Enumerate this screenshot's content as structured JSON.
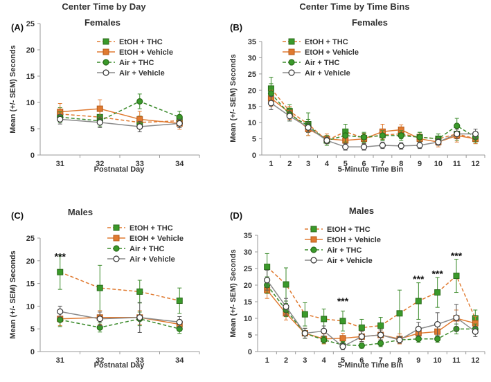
{
  "header": {
    "left_title": "Center Time by Day",
    "right_title": "Center Time by Time Bins"
  },
  "chart_data": [
    {
      "type": "line",
      "panel_label": "(A)",
      "title": "Females",
      "xlabel": "Postnatal Day",
      "ylabel": "Mean (+/- SEM) Seconds",
      "ylim": [
        0,
        25
      ],
      "yticks": [
        0,
        5,
        10,
        15,
        20,
        25
      ],
      "categories": [
        "31",
        "32",
        "33",
        "34"
      ],
      "series": [
        {
          "name": "EtOH + THC",
          "color": "#3a8a2a",
          "marker": "square",
          "fill": "#3a9a2a",
          "dash": true,
          "values": [
            7.8,
            7.2,
            6.2,
            6.5
          ],
          "err": [
            1.2,
            1.3,
            1.2,
            1.0
          ]
        },
        {
          "name": "EtOH + Vehicle",
          "color": "#e07a30",
          "marker": "square",
          "fill": "#e07a30",
          "dash": false,
          "values": [
            8.2,
            8.8,
            6.8,
            6.0
          ],
          "err": [
            1.6,
            1.7,
            1.5,
            1.1
          ]
        },
        {
          "name": "Air + THC",
          "color": "#3a8a2a",
          "marker": "circle",
          "fill": "#3a9a2a",
          "dash": true,
          "values": [
            7.2,
            6.5,
            10.2,
            7.2
          ],
          "err": [
            1.0,
            1.0,
            1.4,
            1.1
          ]
        },
        {
          "name": "Air + Vehicle",
          "color": "#8a8a8a",
          "marker": "circle",
          "fill": "#ffffff",
          "dash": false,
          "values": [
            6.8,
            6.2,
            5.4,
            6.0
          ],
          "err": [
            0.9,
            1.0,
            1.0,
            0.8
          ]
        }
      ],
      "annotations": []
    },
    {
      "type": "line",
      "panel_label": "(B)",
      "title": "Females",
      "xlabel": "5-Minute Time Bin",
      "ylabel": "Mean (+/- SEM) Seconds",
      "ylim": [
        0,
        35
      ],
      "yticks": [
        0,
        5,
        10,
        15,
        20,
        25,
        30,
        35
      ],
      "categories": [
        "1",
        "2",
        "3",
        "4",
        "5",
        "6",
        "7",
        "8",
        "9",
        "10",
        "11",
        "12"
      ],
      "series": [
        {
          "name": "EtOH + THC",
          "color": "#3a8a2a",
          "marker": "square",
          "fill": "#3a9a2a",
          "dash": true,
          "values": [
            20.5,
            13.5,
            9.5,
            4.5,
            7.2,
            5.2,
            6.2,
            6.5,
            5.5,
            5.0,
            6.5,
            5.0
          ],
          "err": [
            3.5,
            2.0,
            3.5,
            1.5,
            2.3,
            1.5,
            1.5,
            1.5,
            1.5,
            1.5,
            2.0,
            1.5
          ]
        },
        {
          "name": "EtOH + Vehicle",
          "color": "#e07a30",
          "marker": "square",
          "fill": "#e07a30",
          "dash": false,
          "values": [
            17.5,
            13.0,
            8.0,
            5.0,
            4.5,
            5.0,
            7.2,
            7.8,
            5.0,
            4.0,
            6.0,
            5.0
          ],
          "err": [
            2.5,
            2.0,
            2.0,
            1.5,
            1.5,
            1.5,
            2.3,
            1.5,
            1.5,
            1.5,
            2.0,
            1.5
          ]
        },
        {
          "name": "Air + THC",
          "color": "#3a8a2a",
          "marker": "circle",
          "fill": "#3a9a2a",
          "dash": true,
          "values": [
            19.0,
            12.5,
            9.0,
            4.5,
            6.0,
            5.5,
            6.0,
            6.0,
            5.5,
            5.0,
            9.0,
            5.5
          ],
          "err": [
            3.0,
            2.0,
            2.0,
            1.5,
            2.0,
            1.5,
            1.5,
            1.5,
            1.5,
            1.5,
            2.3,
            1.5
          ]
        },
        {
          "name": "Air + Vehicle",
          "color": "#8a8a8a",
          "marker": "circle",
          "fill": "#ffffff",
          "dash": false,
          "values": [
            16.0,
            12.0,
            8.5,
            4.5,
            2.5,
            2.5,
            3.0,
            2.8,
            3.0,
            4.0,
            6.5,
            6.5
          ],
          "err": [
            2.0,
            1.5,
            1.5,
            1.0,
            1.0,
            1.0,
            1.0,
            1.0,
            1.0,
            1.0,
            1.5,
            1.5
          ]
        }
      ],
      "annotations": []
    },
    {
      "type": "line",
      "panel_label": "(C)",
      "title": "Males",
      "xlabel": "Postnatal Day",
      "ylabel": "Mean (+/- SEM) Seconds",
      "ylim": [
        0,
        25
      ],
      "yticks": [
        0,
        5,
        10,
        15,
        20,
        25
      ],
      "categories": [
        "31",
        "32",
        "33",
        "34"
      ],
      "series": [
        {
          "name": "EtOH + THC",
          "color": "#3a8a2a",
          "marker": "square",
          "fill": "#3a9a2a",
          "dash": true,
          "values": [
            17.5,
            14.0,
            13.2,
            11.2
          ],
          "err": [
            3.8,
            5.0,
            2.5,
            2.8
          ]
        },
        {
          "name": "EtOH + Vehicle",
          "color": "#e07a30",
          "marker": "square",
          "fill": "#e07a30",
          "dash": false,
          "values": [
            7.2,
            7.5,
            7.5,
            6.0
          ],
          "err": [
            1.5,
            1.5,
            1.5,
            1.0
          ]
        },
        {
          "name": "Air + THC",
          "color": "#3a8a2a",
          "marker": "circle",
          "fill": "#3a9a2a",
          "dash": true,
          "values": [
            7.0,
            5.3,
            7.2,
            5.0
          ],
          "err": [
            1.5,
            1.0,
            1.5,
            1.0
          ]
        },
        {
          "name": "Air + Vehicle",
          "color": "#8a8a8a",
          "marker": "circle",
          "fill": "#ffffff",
          "dash": false,
          "values": [
            8.8,
            7.2,
            7.5,
            6.5
          ],
          "err": [
            1.2,
            1.5,
            3.3,
            1.2
          ]
        }
      ],
      "annotations": [
        {
          "category": "31",
          "text": "***",
          "y": 20.2
        }
      ]
    },
    {
      "type": "line",
      "panel_label": "(D)",
      "title": "Males",
      "xlabel": "5-Minute Time Bin",
      "ylabel": "Mean (+/- SEM) Seconds",
      "ylim": [
        0,
        35
      ],
      "yticks": [
        0,
        5,
        10,
        15,
        20,
        25,
        30,
        35
      ],
      "categories": [
        "1",
        "2",
        "3",
        "4",
        "5",
        "6",
        "7",
        "8",
        "9",
        "10",
        "11",
        "12"
      ],
      "series": [
        {
          "name": "EtOH + THC",
          "color": "#3a8a2a",
          "marker": "square",
          "fill": "#3a9a2a",
          "dash": true,
          "values": [
            25.5,
            20.2,
            11.2,
            9.8,
            9.2,
            7.2,
            7.8,
            11.5,
            15.2,
            17.8,
            22.8,
            10.0
          ],
          "err": [
            4.0,
            5.0,
            3.5,
            3.0,
            3.0,
            2.5,
            2.5,
            7.0,
            5.5,
            4.5,
            5.0,
            2.5
          ]
        },
        {
          "name": "EtOH + Vehicle",
          "color": "#e07a30",
          "marker": "square",
          "fill": "#e07a30",
          "dash": false,
          "values": [
            18.5,
            11.5,
            5.5,
            3.8,
            4.0,
            4.5,
            5.0,
            3.8,
            5.5,
            6.0,
            10.0,
            8.5
          ],
          "err": [
            2.5,
            2.0,
            1.5,
            1.5,
            1.5,
            1.5,
            1.5,
            1.5,
            1.5,
            2.0,
            2.5,
            2.0
          ]
        },
        {
          "name": "Air + THC",
          "color": "#3a8a2a",
          "marker": "circle",
          "fill": "#3a9a2a",
          "dash": true,
          "values": [
            20.0,
            12.5,
            5.5,
            3.5,
            2.0,
            1.8,
            2.5,
            3.5,
            3.8,
            3.8,
            6.8,
            6.8
          ],
          "err": [
            2.5,
            2.0,
            1.5,
            1.0,
            1.0,
            0.8,
            1.0,
            1.0,
            1.0,
            1.0,
            1.5,
            1.5
          ]
        },
        {
          "name": "Air + Vehicle",
          "color": "#8a8a8a",
          "marker": "circle",
          "fill": "#ffffff",
          "dash": false,
          "values": [
            21.5,
            13.5,
            5.5,
            6.2,
            1.5,
            4.5,
            5.0,
            3.5,
            6.8,
            8.2,
            10.2,
            6.0
          ],
          "err": [
            3.0,
            2.5,
            1.5,
            1.5,
            1.0,
            1.5,
            1.5,
            1.0,
            2.0,
            3.5,
            4.0,
            1.5
          ]
        }
      ],
      "annotations": [
        {
          "category": "5",
          "text": "***",
          "y": 14.2
        },
        {
          "category": "9",
          "text": "***",
          "y": 20.8
        },
        {
          "category": "10",
          "text": "***",
          "y": 22.4
        },
        {
          "category": "11",
          "text": "***",
          "y": 27.8
        }
      ]
    }
  ]
}
